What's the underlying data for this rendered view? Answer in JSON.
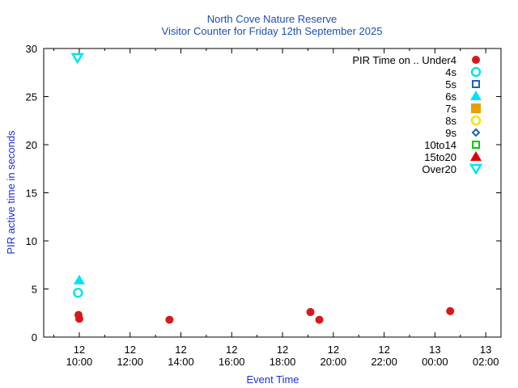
{
  "chart_data": {
    "type": "scatter",
    "title": "North Cove Nature Reserve",
    "subtitle": "Visitor Counter for Friday 12th September 2025",
    "xlabel": "Event Time",
    "ylabel": "PIR active time in seconds",
    "xlim_hours": [
      8.6,
      26.6
    ],
    "ylim": [
      0,
      30
    ],
    "yticks": [
      "0",
      "5",
      "10",
      "15",
      "20",
      "25",
      "30"
    ],
    "xticks": [
      {
        "hour": 10,
        "day": "12",
        "time": "10:00"
      },
      {
        "hour": 12,
        "day": "12",
        "time": "12:00"
      },
      {
        "hour": 14,
        "day": "12",
        "time": "14:00"
      },
      {
        "hour": 16,
        "day": "12",
        "time": "16:00"
      },
      {
        "hour": 18,
        "day": "12",
        "time": "18:00"
      },
      {
        "hour": 20,
        "day": "12",
        "time": "20:00"
      },
      {
        "hour": 22,
        "day": "12",
        "time": "22:00"
      },
      {
        "hour": 24,
        "day": "13",
        "time": "00:00"
      },
      {
        "hour": 26,
        "day": "13",
        "time": "02:00"
      }
    ],
    "legend_title": "PIR Time on ..",
    "legend_position": "top-right",
    "series": [
      {
        "name": "Under4",
        "marker": "circle-filled",
        "color": "#d7191c",
        "points": [
          [
            9.97,
            2.3
          ],
          [
            10.0,
            1.9
          ],
          [
            13.55,
            1.8
          ],
          [
            19.1,
            2.6
          ],
          [
            19.45,
            1.8
          ],
          [
            24.6,
            2.7
          ]
        ]
      },
      {
        "name": "4s",
        "marker": "circle-open",
        "color": "#00e5ee",
        "points": [
          [
            9.95,
            4.6
          ]
        ]
      },
      {
        "name": "5s",
        "marker": "square-open",
        "color": "#1f5fbf",
        "points": []
      },
      {
        "name": "6s",
        "marker": "triangle-up-filled",
        "color": "#00e5ee",
        "points": [
          [
            10.0,
            5.9
          ]
        ]
      },
      {
        "name": "7s",
        "marker": "square-filled",
        "color": "#e8a000",
        "points": []
      },
      {
        "name": "8s",
        "marker": "circle-open",
        "color": "#f2e600",
        "points": []
      },
      {
        "name": "9s",
        "marker": "diamond-open",
        "color": "#1f5fbf",
        "points": []
      },
      {
        "name": "10to14",
        "marker": "square-open",
        "color": "#00cc00",
        "points": []
      },
      {
        "name": "15to20",
        "marker": "triangle-up-filled",
        "color": "#dd0000",
        "points": []
      },
      {
        "name": "Over20",
        "marker": "triangle-down-open",
        "color": "#00e5ee",
        "points": [
          [
            9.93,
            29.0
          ]
        ]
      }
    ]
  }
}
